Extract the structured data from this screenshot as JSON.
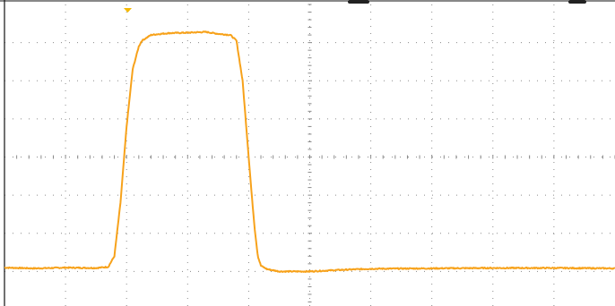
{
  "colors": {
    "trace": "#f7a21b",
    "grid": "#8a8a8a",
    "marker": "#f5b800",
    "frame": "#111111",
    "background": "#ffffff"
  },
  "chart_data": {
    "type": "line",
    "grid": true,
    "xlim": [
      0,
      10
    ],
    "ylim": [
      -4,
      4
    ],
    "x_divisions": 10,
    "y_divisions": 8,
    "series": [
      {
        "x": [
          0,
          0.5,
          1.0,
          1.5,
          1.7,
          1.8,
          1.9,
          2.0,
          2.1,
          2.2,
          2.25,
          2.3,
          2.4,
          2.5,
          2.7,
          3.0,
          3.3,
          3.5,
          3.7,
          3.8,
          3.9,
          3.95,
          4.0,
          4.05,
          4.1,
          4.15,
          4.2,
          4.3,
          4.4,
          4.5,
          5.0,
          5.5,
          6.0,
          7.0,
          8.0,
          9.0,
          10.0
        ],
        "y": [
          -2.9,
          -2.92,
          -2.9,
          -2.91,
          -2.88,
          -2.6,
          -1.2,
          0.8,
          2.3,
          2.9,
          3.05,
          3.1,
          3.2,
          3.22,
          3.25,
          3.26,
          3.28,
          3.23,
          3.2,
          3.05,
          2.0,
          1.0,
          0.0,
          -1.0,
          -1.9,
          -2.6,
          -2.85,
          -2.94,
          -2.97,
          -3.0,
          -3.0,
          -2.96,
          -2.93,
          -2.92,
          -2.91,
          -2.91,
          -2.92
        ]
      }
    ]
  }
}
